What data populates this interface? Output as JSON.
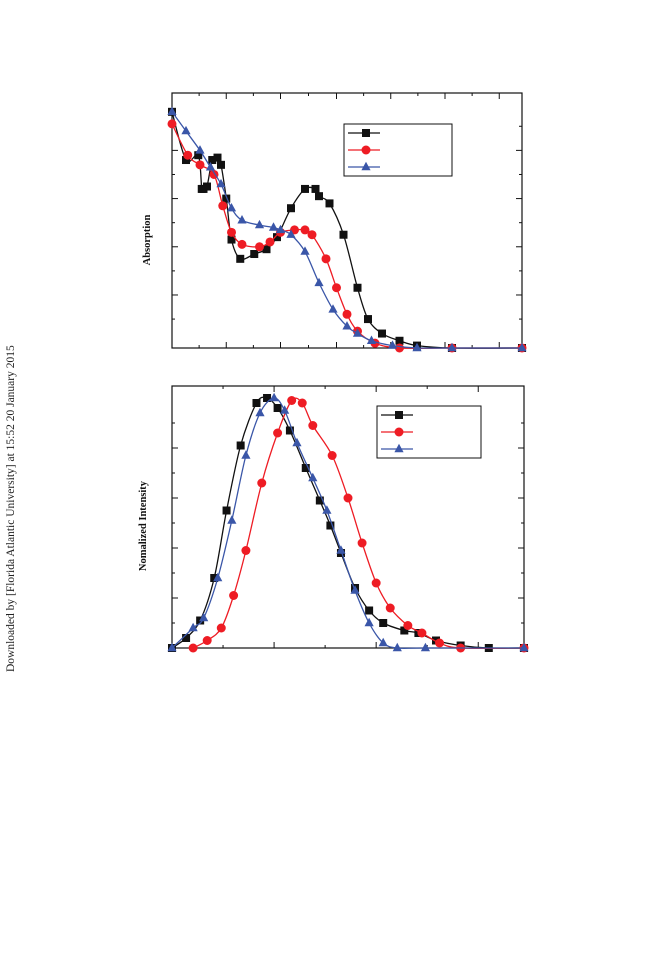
{
  "sidebar": {
    "download_notice": "Downloaded by [Florida Atlantic University] at 15:52 20 January 2015"
  },
  "colors": {
    "series1": "#111111",
    "series2": "#ee1c24",
    "series3": "#3a56a8"
  },
  "chart_data": [
    {
      "type": "line",
      "title": "",
      "xlabel": "",
      "ylabel": "Absorption",
      "xlim": [
        0,
        1
      ],
      "ylim": [
        0,
        1
      ],
      "grid": false,
      "legend": "top-right",
      "series": [
        {
          "marker": "square",
          "color": "#111111",
          "values": [
            [
              0.0,
              0.98
            ],
            [
              0.04,
              0.78
            ],
            [
              0.075,
              0.8
            ],
            [
              0.085,
              0.66
            ],
            [
              0.09,
              0.66
            ],
            [
              0.1,
              0.67
            ],
            [
              0.115,
              0.78
            ],
            [
              0.13,
              0.79
            ],
            [
              0.14,
              0.76
            ],
            [
              0.155,
              0.62
            ],
            [
              0.17,
              0.45
            ],
            [
              0.195,
              0.37
            ],
            [
              0.235,
              0.39
            ],
            [
              0.27,
              0.41
            ],
            [
              0.3,
              0.46
            ],
            [
              0.34,
              0.58
            ],
            [
              0.38,
              0.66
            ],
            [
              0.41,
              0.66
            ],
            [
              0.42,
              0.63
            ],
            [
              0.45,
              0.6
            ],
            [
              0.49,
              0.47
            ],
            [
              0.53,
              0.25
            ],
            [
              0.56,
              0.12
            ],
            [
              0.6,
              0.06
            ],
            [
              0.65,
              0.03
            ],
            [
              0.7,
              0.01
            ],
            [
              0.8,
              0.0
            ],
            [
              1.0,
              0.0
            ]
          ]
        },
        {
          "marker": "circle",
          "color": "#ee1c24",
          "values": [
            [
              0.0,
              0.93
            ],
            [
              0.045,
              0.8
            ],
            [
              0.08,
              0.76
            ],
            [
              0.12,
              0.72
            ],
            [
              0.145,
              0.59
            ],
            [
              0.17,
              0.48
            ],
            [
              0.2,
              0.43
            ],
            [
              0.25,
              0.42
            ],
            [
              0.28,
              0.44
            ],
            [
              0.31,
              0.48
            ],
            [
              0.35,
              0.49
            ],
            [
              0.38,
              0.49
            ],
            [
              0.4,
              0.47
            ],
            [
              0.44,
              0.37
            ],
            [
              0.47,
              0.25
            ],
            [
              0.5,
              0.14
            ],
            [
              0.53,
              0.07
            ],
            [
              0.58,
              0.02
            ],
            [
              0.65,
              0.0
            ],
            [
              0.8,
              0.0
            ],
            [
              1.0,
              0.0
            ]
          ]
        },
        {
          "marker": "triangle",
          "color": "#3a56a8",
          "values": [
            [
              0.0,
              0.98
            ],
            [
              0.04,
              0.9
            ],
            [
              0.08,
              0.82
            ],
            [
              0.11,
              0.75
            ],
            [
              0.14,
              0.68
            ],
            [
              0.17,
              0.58
            ],
            [
              0.2,
              0.53
            ],
            [
              0.25,
              0.51
            ],
            [
              0.29,
              0.5
            ],
            [
              0.31,
              0.49
            ],
            [
              0.34,
              0.47
            ],
            [
              0.38,
              0.4
            ],
            [
              0.42,
              0.27
            ],
            [
              0.46,
              0.16
            ],
            [
              0.5,
              0.09
            ],
            [
              0.53,
              0.06
            ],
            [
              0.57,
              0.03
            ],
            [
              0.63,
              0.01
            ],
            [
              0.7,
              0.0
            ],
            [
              0.8,
              0.0
            ],
            [
              1.0,
              0.0
            ]
          ]
        }
      ]
    },
    {
      "type": "line",
      "title": "",
      "xlabel": "",
      "ylabel": "Nomalized Intensity",
      "xlim": [
        0,
        1
      ],
      "ylim": [
        0,
        1
      ],
      "grid": false,
      "legend": "top-right",
      "series": [
        {
          "marker": "square",
          "color": "#111111",
          "values": [
            [
              0.0,
              0.0
            ],
            [
              0.04,
              0.04
            ],
            [
              0.08,
              0.11
            ],
            [
              0.12,
              0.28
            ],
            [
              0.155,
              0.55
            ],
            [
              0.195,
              0.81
            ],
            [
              0.24,
              0.98
            ],
            [
              0.27,
              1.0
            ],
            [
              0.3,
              0.96
            ],
            [
              0.335,
              0.87
            ],
            [
              0.38,
              0.72
            ],
            [
              0.42,
              0.59
            ],
            [
              0.45,
              0.49
            ],
            [
              0.48,
              0.38
            ],
            [
              0.52,
              0.24
            ],
            [
              0.56,
              0.15
            ],
            [
              0.6,
              0.1
            ],
            [
              0.66,
              0.07
            ],
            [
              0.7,
              0.06
            ],
            [
              0.75,
              0.03
            ],
            [
              0.82,
              0.01
            ],
            [
              0.9,
              0.0
            ],
            [
              1.0,
              0.0
            ]
          ]
        },
        {
          "marker": "circle",
          "color": "#ee1c24",
          "values": [
            [
              0.06,
              0.0
            ],
            [
              0.1,
              0.03
            ],
            [
              0.14,
              0.08
            ],
            [
              0.175,
              0.21
            ],
            [
              0.21,
              0.39
            ],
            [
              0.255,
              0.66
            ],
            [
              0.3,
              0.86
            ],
            [
              0.34,
              0.99
            ],
            [
              0.37,
              0.98
            ],
            [
              0.4,
              0.89
            ],
            [
              0.455,
              0.77
            ],
            [
              0.5,
              0.6
            ],
            [
              0.54,
              0.42
            ],
            [
              0.58,
              0.26
            ],
            [
              0.62,
              0.16
            ],
            [
              0.67,
              0.09
            ],
            [
              0.71,
              0.06
            ],
            [
              0.76,
              0.02
            ],
            [
              0.82,
              0.0
            ],
            [
              1.0,
              0.0
            ]
          ]
        },
        {
          "marker": "triangle",
          "color": "#3a56a8",
          "values": [
            [
              0.0,
              0.0
            ],
            [
              0.06,
              0.08
            ],
            [
              0.09,
              0.12
            ],
            [
              0.13,
              0.28
            ],
            [
              0.17,
              0.51
            ],
            [
              0.21,
              0.77
            ],
            [
              0.25,
              0.94
            ],
            [
              0.29,
              1.0
            ],
            [
              0.32,
              0.95
            ],
            [
              0.355,
              0.82
            ],
            [
              0.4,
              0.68
            ],
            [
              0.44,
              0.55
            ],
            [
              0.48,
              0.39
            ],
            [
              0.52,
              0.23
            ],
            [
              0.56,
              0.1
            ],
            [
              0.6,
              0.02
            ],
            [
              0.64,
              0.0
            ],
            [
              0.72,
              0.0
            ],
            [
              1.0,
              0.0
            ]
          ]
        }
      ]
    }
  ]
}
